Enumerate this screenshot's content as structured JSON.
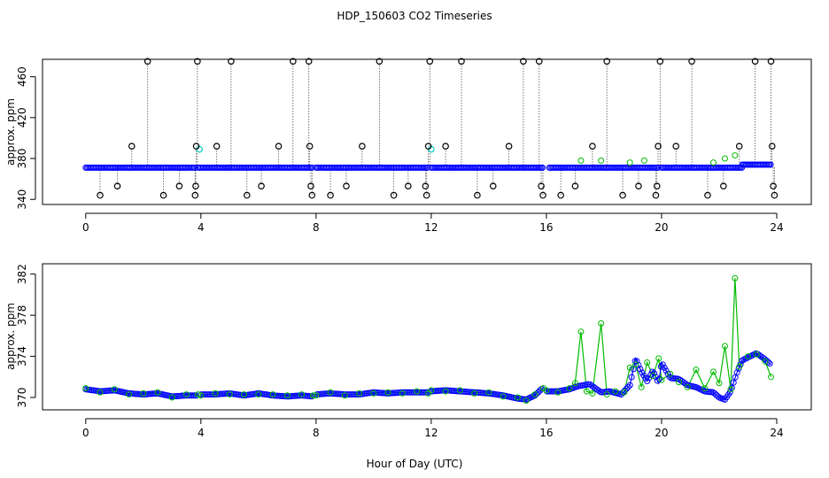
{
  "figure": {
    "title": "HDP_150603  CO2 Timeseries",
    "xlabel": "Hour of Day (UTC)"
  },
  "colors": {
    "flag_outlier": "#000000",
    "flag_cyan": "#00cccc",
    "series_raw": "#0000ff",
    "series_alt": "#00bb00"
  },
  "chart_data": [
    {
      "type": "scatter",
      "ylabel": "approx. ppm",
      "xlim": [
        -1.5,
        25.2
      ],
      "ylim": [
        335,
        477
      ],
      "xticks": [
        0,
        4,
        8,
        12,
        16,
        20,
        24
      ],
      "yticks": [
        340,
        380,
        420,
        460
      ],
      "grid": false,
      "baseline_segments": [
        {
          "from": 0.0,
          "to": 3.8,
          "value": 371
        },
        {
          "from": 3.9,
          "to": 7.9,
          "value": 371
        },
        {
          "from": 8.0,
          "to": 11.9,
          "value": 371
        },
        {
          "from": 12.0,
          "to": 15.9,
          "value": 371
        },
        {
          "from": 16.1,
          "to": 19.9,
          "value": 371
        },
        {
          "from": 20.0,
          "to": 22.8,
          "value": 371
        },
        {
          "from": 22.8,
          "to": 23.8,
          "value": 374
        }
      ],
      "outliers": [
        {
          "x": 0.5,
          "y": 344
        },
        {
          "x": 1.1,
          "y": 353
        },
        {
          "x": 1.6,
          "y": 392
        },
        {
          "x": 2.15,
          "y": 475
        },
        {
          "x": 2.7,
          "y": 344
        },
        {
          "x": 3.25,
          "y": 353
        },
        {
          "x": 3.8,
          "y": 344
        },
        {
          "x": 3.82,
          "y": 353
        },
        {
          "x": 3.84,
          "y": 392
        },
        {
          "x": 3.88,
          "y": 475
        },
        {
          "x": 4.55,
          "y": 392
        },
        {
          "x": 5.05,
          "y": 475
        },
        {
          "x": 5.6,
          "y": 344
        },
        {
          "x": 6.1,
          "y": 353
        },
        {
          "x": 6.7,
          "y": 392
        },
        {
          "x": 7.2,
          "y": 475
        },
        {
          "x": 7.75,
          "y": 475
        },
        {
          "x": 7.78,
          "y": 392
        },
        {
          "x": 7.82,
          "y": 353
        },
        {
          "x": 7.86,
          "y": 344
        },
        {
          "x": 8.5,
          "y": 344
        },
        {
          "x": 9.05,
          "y": 353
        },
        {
          "x": 9.6,
          "y": 392
        },
        {
          "x": 10.2,
          "y": 475
        },
        {
          "x": 10.7,
          "y": 344
        },
        {
          "x": 11.2,
          "y": 353
        },
        {
          "x": 11.8,
          "y": 353
        },
        {
          "x": 11.84,
          "y": 344
        },
        {
          "x": 11.9,
          "y": 392
        },
        {
          "x": 11.95,
          "y": 475
        },
        {
          "x": 12.5,
          "y": 392
        },
        {
          "x": 13.05,
          "y": 475
        },
        {
          "x": 13.6,
          "y": 344
        },
        {
          "x": 14.15,
          "y": 353
        },
        {
          "x": 14.7,
          "y": 392
        },
        {
          "x": 15.2,
          "y": 475
        },
        {
          "x": 15.75,
          "y": 475
        },
        {
          "x": 15.82,
          "y": 353
        },
        {
          "x": 15.88,
          "y": 344
        },
        {
          "x": 16.5,
          "y": 344
        },
        {
          "x": 17.0,
          "y": 353
        },
        {
          "x": 17.6,
          "y": 392
        },
        {
          "x": 18.1,
          "y": 475
        },
        {
          "x": 18.65,
          "y": 344
        },
        {
          "x": 19.2,
          "y": 353
        },
        {
          "x": 19.8,
          "y": 344
        },
        {
          "x": 19.84,
          "y": 353
        },
        {
          "x": 19.88,
          "y": 392
        },
        {
          "x": 19.95,
          "y": 475
        },
        {
          "x": 20.5,
          "y": 392
        },
        {
          "x": 21.05,
          "y": 475
        },
        {
          "x": 21.6,
          "y": 344
        },
        {
          "x": 22.15,
          "y": 353
        },
        {
          "x": 22.7,
          "y": 392
        },
        {
          "x": 23.25,
          "y": 475
        },
        {
          "x": 23.8,
          "y": 475
        },
        {
          "x": 23.84,
          "y": 392
        },
        {
          "x": 23.88,
          "y": 353
        },
        {
          "x": 23.92,
          "y": 344
        }
      ],
      "cyan_points": [
        {
          "x": 3.95,
          "y": 389
        },
        {
          "x": 12.0,
          "y": 389
        }
      ],
      "green_points": [
        {
          "x": 17.2,
          "y": 378
        },
        {
          "x": 17.9,
          "y": 378
        },
        {
          "x": 18.9,
          "y": 376
        },
        {
          "x": 19.4,
          "y": 378
        },
        {
          "x": 21.8,
          "y": 376
        },
        {
          "x": 22.2,
          "y": 380
        },
        {
          "x": 22.55,
          "y": 383
        }
      ]
    },
    {
      "type": "line",
      "ylabel": "approx. ppm",
      "xlim": [
        -1.5,
        25.2
      ],
      "ylim": [
        368.8,
        383.0
      ],
      "xticks": [
        0,
        4,
        8,
        12,
        16,
        20,
        24
      ],
      "yticks": [
        370,
        374,
        378,
        382
      ],
      "grid": false,
      "gaps": [
        3.95,
        7.95,
        11.95,
        15.95
      ],
      "series": [
        {
          "values_x": [
            0.0,
            0.5,
            1.0,
            1.5,
            2.0,
            2.5,
            3.0,
            3.5,
            3.9,
            4.0,
            4.5,
            5.0,
            5.5,
            6.0,
            6.5,
            7.0,
            7.5,
            7.9,
            8.0,
            8.5,
            9.0,
            9.5,
            10.0,
            10.5,
            11.0,
            11.5,
            11.9,
            12.0,
            12.5,
            13.0,
            13.5,
            14.0,
            14.5,
            15.0,
            15.3,
            15.6,
            15.9,
            16.0,
            16.4,
            16.8,
            17.1,
            17.5,
            17.9,
            18.2,
            18.6,
            18.9,
            19.1,
            19.3,
            19.5,
            19.7,
            19.9,
            20.0,
            20.3,
            20.6,
            20.9,
            21.2,
            21.5,
            21.8,
            22.0,
            22.2,
            22.4,
            22.6,
            22.8,
            23.0,
            23.3,
            23.6,
            23.8
          ],
          "values_y": [
            370.8,
            370.6,
            370.7,
            370.4,
            370.3,
            370.4,
            370.1,
            370.2,
            370.2,
            370.3,
            370.3,
            370.4,
            370.2,
            370.4,
            370.2,
            370.1,
            370.2,
            370.1,
            370.3,
            370.4,
            370.3,
            370.3,
            370.5,
            370.4,
            370.5,
            370.5,
            370.5,
            370.6,
            370.7,
            370.6,
            370.5,
            370.4,
            370.2,
            369.9,
            369.8,
            370.2,
            371.0,
            370.6,
            370.6,
            370.8,
            371.1,
            371.3,
            370.5,
            370.6,
            370.3,
            371.2,
            373.8,
            372.5,
            371.6,
            372.6,
            371.4,
            373.4,
            371.9,
            371.8,
            371.2,
            371.0,
            370.6,
            370.5,
            370.0,
            369.8,
            370.6,
            372.3,
            373.6,
            373.9,
            374.3,
            373.7,
            373.2
          ]
        },
        {
          "values_x": [
            0.0,
            0.5,
            1.0,
            1.5,
            2.0,
            2.5,
            3.0,
            3.5,
            3.9,
            4.0,
            4.5,
            5.0,
            5.5,
            6.0,
            6.5,
            7.0,
            7.5,
            7.9,
            8.0,
            8.5,
            9.0,
            9.5,
            10.0,
            10.5,
            11.0,
            11.5,
            11.9,
            12.0,
            12.5,
            13.0,
            13.5,
            14.0,
            14.5,
            15.0,
            15.3,
            15.6,
            15.9,
            16.0,
            16.4,
            16.8,
            17.0,
            17.2,
            17.4,
            17.6,
            17.9,
            18.1,
            18.4,
            18.7,
            18.9,
            19.1,
            19.3,
            19.5,
            19.7,
            19.9,
            20.0,
            20.3,
            20.6,
            20.9,
            21.2,
            21.5,
            21.8,
            22.0,
            22.2,
            22.4,
            22.55,
            22.7,
            23.0,
            23.3,
            23.6,
            23.8
          ],
          "values_y": [
            370.9,
            370.5,
            370.8,
            370.3,
            370.4,
            370.5,
            370.0,
            370.3,
            370.3,
            370.2,
            370.4,
            370.3,
            370.3,
            370.3,
            370.3,
            370.2,
            370.3,
            370.2,
            370.2,
            370.5,
            370.2,
            370.4,
            370.4,
            370.5,
            370.4,
            370.6,
            370.4,
            370.7,
            370.6,
            370.7,
            370.4,
            370.5,
            370.1,
            370.0,
            369.7,
            370.3,
            370.9,
            370.7,
            370.5,
            370.9,
            371.4,
            376.4,
            370.6,
            370.4,
            377.2,
            370.3,
            370.6,
            370.5,
            372.9,
            373.2,
            371.0,
            373.4,
            372.1,
            373.8,
            371.7,
            372.3,
            371.5,
            371.0,
            372.7,
            370.9,
            372.5,
            371.4,
            375.0,
            370.8,
            381.6,
            373.0,
            374.0,
            374.2,
            373.5,
            372.0
          ]
        }
      ]
    }
  ]
}
